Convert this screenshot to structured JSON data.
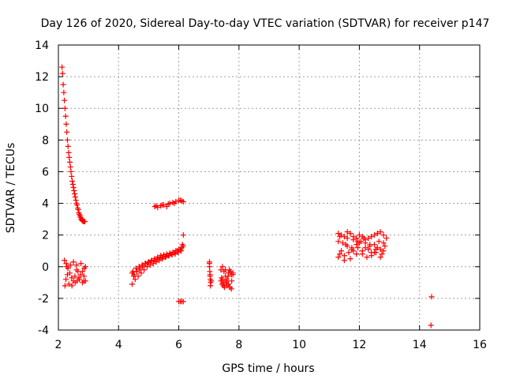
{
  "chart_data": {
    "type": "scatter",
    "title": "Day 126 of 2020, Sidereal Day-to-day VTEC variation (SDTVAR) for receiver p147",
    "xlabel": "GPS time / hours",
    "ylabel": "SDTVAR / TECUs",
    "xlim": [
      2,
      16
    ],
    "ylim": [
      -4,
      14
    ],
    "xticks": [
      2,
      4,
      6,
      8,
      10,
      12,
      14,
      16
    ],
    "yticks": [
      -4,
      -2,
      0,
      2,
      4,
      6,
      8,
      10,
      12,
      14
    ],
    "grid": true,
    "marker": "+",
    "color": "#ff0000",
    "series": [
      {
        "name": "SDTVAR",
        "x": [
          2.12,
          2.14,
          2.16,
          2.18,
          2.2,
          2.22,
          2.24,
          2.26,
          2.28,
          2.3,
          2.32,
          2.34,
          2.36,
          2.38,
          2.4,
          2.42,
          2.44,
          2.46,
          2.48,
          2.5,
          2.52,
          2.54,
          2.56,
          2.58,
          2.6,
          2.62,
          2.64,
          2.66,
          2.68,
          2.7,
          2.72,
          2.74,
          2.76,
          2.78,
          2.8,
          2.82,
          2.84,
          2.86,
          2.88,
          2.2,
          2.26,
          2.32,
          2.38,
          2.44,
          2.5,
          2.56,
          2.62,
          2.68,
          2.74,
          2.8,
          2.86,
          2.9,
          2.25,
          2.35,
          2.45,
          2.55,
          2.65,
          2.75,
          2.85,
          2.3,
          2.4,
          2.5,
          2.6,
          2.7,
          2.8,
          2.28,
          2.6,
          2.85,
          2.22,
          2.9,
          4.45,
          4.55,
          4.65,
          4.75,
          4.85,
          4.95,
          5.05,
          5.15,
          5.25,
          5.35,
          5.45,
          5.55,
          5.65,
          5.75,
          5.85,
          5.95,
          6.05,
          6.15,
          4.5,
          4.6,
          4.7,
          4.8,
          4.9,
          5.0,
          5.1,
          5.2,
          5.3,
          5.4,
          5.5,
          5.6,
          5.7,
          5.8,
          5.9,
          6.0,
          6.1,
          4.48,
          4.58,
          4.68,
          4.78,
          4.88,
          4.98,
          5.08,
          5.18,
          5.28,
          5.38,
          5.48,
          5.58,
          5.68,
          5.78,
          5.88,
          5.98,
          6.08,
          4.45,
          4.52,
          4.6,
          4.7,
          4.8,
          6.12,
          6.15,
          5.2,
          5.3,
          5.4,
          5.5,
          5.6,
          5.7,
          5.8,
          5.9,
          6.0,
          6.1,
          6.15,
          5.25,
          5.45,
          5.65,
          5.85,
          6.05,
          6.0,
          6.05,
          6.1,
          6.15,
          7.02,
          7.02,
          7.03,
          7.04,
          7.05,
          7.06,
          7.05,
          7.04,
          7.08,
          7.02,
          7.4,
          7.45,
          7.5,
          7.55,
          7.6,
          7.65,
          7.7,
          7.75,
          7.8,
          7.42,
          7.5,
          7.6,
          7.7,
          7.75,
          7.45,
          7.55,
          7.65,
          7.4,
          7.48,
          7.56,
          7.64,
          7.72,
          7.8,
          7.44,
          7.52,
          7.6,
          7.68,
          7.76,
          11.3,
          11.4,
          11.5,
          11.6,
          11.7,
          11.8,
          11.9,
          12.0,
          12.1,
          12.2,
          12.3,
          12.4,
          12.5,
          12.6,
          12.7,
          12.8,
          12.9,
          11.3,
          11.45,
          11.6,
          11.75,
          11.9,
          12.05,
          12.2,
          12.35,
          12.5,
          12.65,
          12.8,
          11.35,
          11.5,
          11.65,
          11.8,
          11.95,
          12.1,
          12.25,
          12.4,
          12.55,
          12.7,
          12.85,
          11.3,
          11.5,
          11.7,
          11.9,
          12.1,
          12.3,
          12.5,
          12.7,
          11.4,
          11.6,
          11.8,
          12.0,
          12.2,
          12.4,
          12.6,
          12.8,
          11.35,
          11.55,
          11.75,
          11.95,
          12.15,
          12.35,
          12.55,
          12.75,
          14.4,
          14.38
        ],
        "y": [
          12.6,
          12.2,
          11.5,
          11.0,
          10.5,
          10.0,
          9.5,
          9.0,
          8.5,
          8.0,
          7.6,
          7.2,
          6.9,
          6.6,
          6.3,
          6.0,
          5.7,
          5.4,
          5.2,
          5.0,
          4.8,
          4.6,
          4.4,
          4.2,
          4.0,
          3.9,
          3.7,
          3.6,
          3.4,
          3.3,
          3.2,
          3.1,
          3.0,
          2.95,
          2.9,
          2.88,
          2.87,
          2.86,
          2.85,
          0.4,
          0.2,
          -0.1,
          -0.4,
          -0.7,
          -0.9,
          -1.0,
          -0.9,
          -0.7,
          -0.5,
          -0.3,
          -0.1,
          0.0,
          -0.8,
          -1.1,
          -1.2,
          -0.6,
          -0.3,
          0.2,
          -0.9,
          -0.5,
          0.1,
          0.3,
          -0.2,
          -0.8,
          -1.0,
          0.0,
          0.1,
          -0.6,
          -1.2,
          -0.9,
          -1.1,
          -0.8,
          -0.6,
          -0.4,
          -0.2,
          0.0,
          0.1,
          0.2,
          0.3,
          0.4,
          0.5,
          0.6,
          0.7,
          0.8,
          0.9,
          1.0,
          1.1,
          1.3,
          -0.6,
          -0.3,
          -0.1,
          0.1,
          0.2,
          0.3,
          0.4,
          0.5,
          0.6,
          0.7,
          0.75,
          0.8,
          0.85,
          0.9,
          1.0,
          1.1,
          1.2,
          -0.3,
          -0.1,
          0.0,
          0.1,
          0.2,
          0.25,
          0.35,
          0.4,
          0.5,
          0.55,
          0.6,
          0.65,
          0.7,
          0.75,
          0.8,
          0.9,
          1.0,
          -0.4,
          -0.5,
          -0.3,
          -0.2,
          0.0,
          1.4,
          2.0,
          3.8,
          3.75,
          3.85,
          3.9,
          3.8,
          4.0,
          4.05,
          4.1,
          4.2,
          4.15,
          4.1,
          3.85,
          3.9,
          3.95,
          4.0,
          4.2,
          -2.2,
          -2.2,
          -2.2,
          -2.2,
          0.3,
          0.0,
          -0.3,
          -0.5,
          -0.8,
          -1.0,
          -1.2,
          -0.6,
          -0.9,
          0.2,
          -0.2,
          0.0,
          -0.3,
          -0.6,
          -0.9,
          -1.1,
          -1.3,
          -1.4,
          -0.4,
          -0.7,
          -1.0,
          -1.2,
          -1.3,
          -0.5,
          -0.8,
          -0.2,
          -0.4,
          -0.9,
          -1.2,
          -1.0,
          -0.6,
          -0.3,
          -0.5,
          -1.1,
          -1.3,
          -0.8,
          -0.2,
          -0.9,
          2.1,
          2.0,
          1.9,
          2.2,
          2.1,
          1.9,
          1.8,
          2.0,
          1.9,
          1.7,
          1.8,
          1.9,
          2.0,
          2.1,
          2.2,
          2.0,
          1.8,
          1.6,
          1.5,
          1.3,
          1.2,
          1.4,
          1.6,
          1.5,
          1.3,
          1.4,
          1.6,
          1.5,
          0.8,
          0.7,
          0.9,
          1.0,
          1.2,
          0.8,
          0.6,
          0.7,
          0.9,
          1.1,
          1.3,
          0.6,
          0.4,
          0.5,
          0.8,
          1.0,
          1.1,
          0.9,
          0.6,
          1.0,
          1.8,
          1.7,
          1.5,
          1.2,
          0.9,
          1.2,
          1.0,
          1.9,
          1.4,
          1.1,
          1.6,
          1.8,
          1.4,
          1.1,
          0.8,
          -1.9,
          -3.7
        ]
      }
    ]
  }
}
